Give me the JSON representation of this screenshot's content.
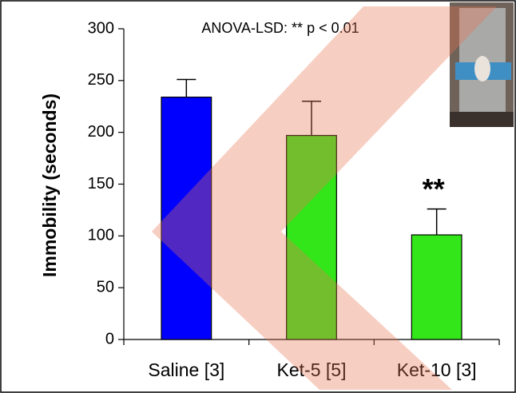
{
  "chart_data": {
    "type": "bar",
    "annotation": "ANOVA-LSD: ** p < 0.01",
    "y_label": "Immobility (seconds)",
    "categories": [
      "Saline [3]",
      "Ket-5 [5]",
      "Ket-10 [3]"
    ],
    "values": [
      234,
      197,
      101
    ],
    "errors": [
      17,
      33,
      25
    ],
    "colors": [
      "#0000ff",
      "#33e61a",
      "#33e61a"
    ],
    "significance": [
      "",
      "",
      "**"
    ],
    "ylim": [
      0,
      300
    ],
    "yticks": [
      0,
      50,
      100,
      150,
      200,
      250,
      300
    ],
    "grid": false
  }
}
